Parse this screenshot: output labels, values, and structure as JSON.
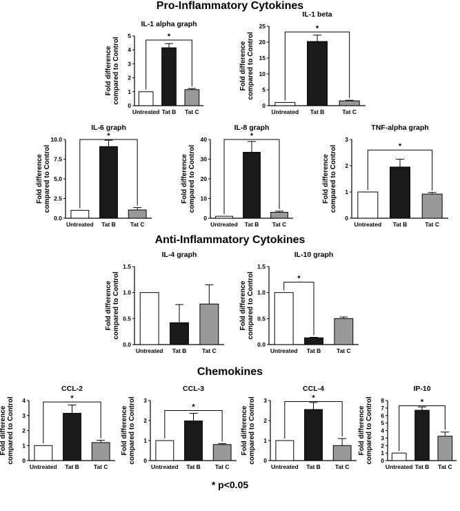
{
  "sections": {
    "pro": "Pro-Inflammatory Cytokines",
    "anti": "Anti-Inflammatory Cytokines",
    "chemo": "Chemokines"
  },
  "footnote": "* p<0.05",
  "colors": {
    "untreated": "#ffffff",
    "tatB": "#1a1a1a",
    "tatC": "#999999"
  },
  "chart_data": [
    {
      "id": "il1a",
      "type": "bar",
      "title": "IL-1 alpha graph",
      "ylabel": "Fold difference compared to Control",
      "categories": [
        "Untreated",
        "Tat B",
        "Tat C"
      ],
      "values": [
        1.0,
        4.15,
        1.15
      ],
      "errors": [
        0,
        0.3,
        0.08
      ],
      "ylim": [
        0,
        5
      ],
      "yticks": [
        0,
        1,
        2,
        3,
        4,
        5
      ],
      "tick_labels": [
        "0",
        "1",
        "2",
        "3",
        "4",
        "5"
      ],
      "sig": {
        "from": 0,
        "to": 2,
        "y": 4.7,
        "label": "*"
      }
    },
    {
      "id": "il1b",
      "type": "bar",
      "title": "IL-1 beta",
      "ylabel": "Fold difference compared to Control",
      "categories": [
        "Untreated",
        "Tat B",
        "Tat C"
      ],
      "values": [
        1.0,
        20.2,
        1.5
      ],
      "errors": [
        0,
        2.0,
        0.2
      ],
      "ylim": [
        0,
        25
      ],
      "yticks": [
        0,
        5,
        10,
        15,
        20,
        25
      ],
      "tick_labels": [
        "0",
        "5",
        "10",
        "15",
        "20",
        "25"
      ],
      "sig": {
        "from": 0,
        "to": 2,
        "y": 23.2,
        "label": "*"
      }
    },
    {
      "id": "il6",
      "type": "bar",
      "title": "IL-6 graph",
      "ylabel": "Fold difference compared to Control",
      "categories": [
        "Untreated",
        "Tat B",
        "Tat C"
      ],
      "values": [
        1.0,
        9.1,
        1.05
      ],
      "errors": [
        0,
        0.8,
        0.3
      ],
      "ylim": [
        0,
        10
      ],
      "yticks": [
        0,
        2.5,
        5,
        7.5,
        10
      ],
      "tick_labels": [
        "0.0",
        "2.5",
        "5.0",
        "7.5",
        "10.0"
      ],
      "sig": {
        "from": 0,
        "to": 2,
        "y": 10.0,
        "label": "*"
      }
    },
    {
      "id": "il8",
      "type": "bar",
      "title": "IL-8 graph",
      "ylabel": "Fold difference compared to Control",
      "categories": [
        "Untreated",
        "Tat B",
        "Tat C"
      ],
      "values": [
        1.0,
        33.5,
        3.0
      ],
      "errors": [
        0,
        5.5,
        0.6
      ],
      "ylim": [
        0,
        40
      ],
      "yticks": [
        0,
        10,
        20,
        30,
        40
      ],
      "tick_labels": [
        "0",
        "10",
        "20",
        "30",
        "40"
      ],
      "sig": {
        "from": 0,
        "to": 2,
        "y": 40,
        "label": "*"
      }
    },
    {
      "id": "tnfa",
      "type": "bar",
      "title": "TNF-alpha graph",
      "ylabel": "Fold difference compared to Control",
      "categories": [
        "Untreated",
        "Tat B",
        "Tat C"
      ],
      "values": [
        1.0,
        1.95,
        0.92
      ],
      "errors": [
        0,
        0.3,
        0.06
      ],
      "ylim": [
        0,
        3
      ],
      "yticks": [
        0,
        1,
        2,
        3
      ],
      "tick_labels": [
        "0",
        "1",
        "2",
        "3"
      ],
      "sig": {
        "from": 0,
        "to": 2,
        "y": 2.6,
        "label": "*"
      }
    },
    {
      "id": "il4",
      "type": "bar",
      "title": "IL-4 graph",
      "ylabel": "Fold difference compared to Control",
      "categories": [
        "Untreated",
        "Tat B",
        "Tat C"
      ],
      "values": [
        1.0,
        0.42,
        0.78
      ],
      "errors": [
        0,
        0.35,
        0.37
      ],
      "ylim": [
        0,
        1.5
      ],
      "yticks": [
        0,
        0.5,
        1.0,
        1.5
      ],
      "tick_labels": [
        "0.0",
        "0.5",
        "1.0",
        "1.5"
      ],
      "sig": null
    },
    {
      "id": "il10",
      "type": "bar",
      "title": "IL-10 graph",
      "ylabel": "Fold difference compared to Control",
      "categories": [
        "Untreated",
        "Tat B",
        "Tat C"
      ],
      "values": [
        1.0,
        0.13,
        0.5
      ],
      "errors": [
        0,
        0.01,
        0.03
      ],
      "ylim": [
        0,
        1.5
      ],
      "yticks": [
        0,
        0.5,
        1.0,
        1.5
      ],
      "tick_labels": [
        "0.0",
        "0.5",
        "1.0",
        "1.5"
      ],
      "sig": {
        "from": 0,
        "to": 1,
        "y": 1.2,
        "label": "*"
      }
    },
    {
      "id": "ccl2",
      "type": "bar",
      "title": "CCL-2",
      "ylabel": "Fold difference compared to Control",
      "categories": [
        "Untreated",
        "Tat B",
        "Tat C"
      ],
      "values": [
        1.0,
        3.15,
        1.2
      ],
      "errors": [
        0,
        0.55,
        0.15
      ],
      "ylim": [
        0,
        4
      ],
      "yticks": [
        0,
        1,
        2,
        3,
        4
      ],
      "tick_labels": [
        "0",
        "1",
        "2",
        "3",
        "4"
      ],
      "sig": {
        "from": 0,
        "to": 2,
        "y": 3.9,
        "label": "*"
      }
    },
    {
      "id": "ccl3",
      "type": "bar",
      "title": "CCL-3",
      "ylabel": "Fold difference compared to Control",
      "categories": [
        "Untreated",
        "Tat B",
        "Tat C"
      ],
      "values": [
        1.0,
        1.98,
        0.8
      ],
      "errors": [
        0,
        0.38,
        0.05
      ],
      "ylim": [
        0,
        3
      ],
      "yticks": [
        0,
        1,
        2,
        3
      ],
      "tick_labels": [
        "0",
        "1",
        "2",
        "3"
      ],
      "sig": {
        "from": 0,
        "to": 2,
        "y": 2.5,
        "label": "*"
      }
    },
    {
      "id": "ccl4",
      "type": "bar",
      "title": "CCL-4",
      "ylabel": "Fold difference compared to Control",
      "categories": [
        "Untreated",
        "Tat B",
        "Tat C"
      ],
      "values": [
        1.0,
        2.55,
        0.75
      ],
      "errors": [
        0,
        0.35,
        0.35
      ],
      "ylim": [
        0,
        3
      ],
      "yticks": [
        0,
        1,
        2,
        3
      ],
      "tick_labels": [
        "0",
        "1",
        "2",
        "3"
      ],
      "sig": {
        "from": 0,
        "to": 2,
        "y": 2.95,
        "label": "*"
      }
    },
    {
      "id": "ip10",
      "type": "bar",
      "title": "IP-10",
      "ylabel": "Fold difference compared to Control",
      "categories": [
        "Untreated",
        "Tat B",
        "Tat C"
      ],
      "values": [
        1.0,
        6.7,
        3.25
      ],
      "errors": [
        0,
        0.45,
        0.55
      ],
      "ylim": [
        0,
        8
      ],
      "yticks": [
        0,
        1,
        2,
        3,
        4,
        5,
        6,
        7,
        8
      ],
      "tick_labels": [
        "0",
        "1",
        "2",
        "3",
        "4",
        "5",
        "6",
        "7",
        "8"
      ],
      "sig": {
        "from": 0,
        "to": 2,
        "y": 7.3,
        "label": "*"
      }
    }
  ]
}
